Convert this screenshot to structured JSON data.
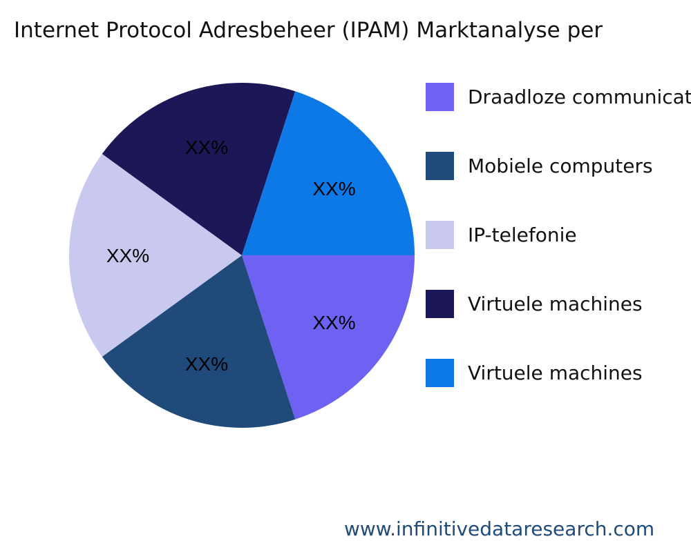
{
  "chart_data": {
    "type": "pie",
    "title": "Internet Protocol Adresbeheer (IPAM) Marktanalyse per",
    "categories": [
      "Draadloze communicatie",
      "Mobiele computers",
      "IP-telefonie",
      "Virtuele machines",
      "Virtuele machines"
    ],
    "values": [
      20,
      20,
      20,
      20,
      20
    ],
    "data_labels": [
      "XX%",
      "XX%",
      "XX%",
      "XX%",
      "XX%"
    ],
    "colors": [
      "#6f61f2",
      "#1f4a7a",
      "#c9c9f0",
      "#1c1857",
      "#0c79e6"
    ],
    "legend_position": "right"
  },
  "footer": "www.infinitivedataresearch.com"
}
